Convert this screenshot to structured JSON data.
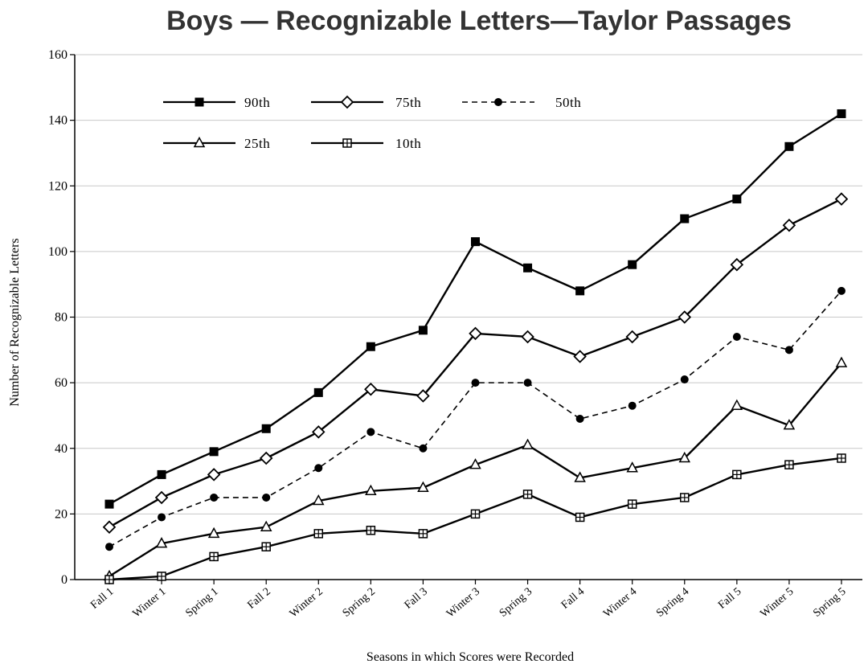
{
  "chart_data": {
    "type": "line",
    "title": "Boys — Recognizable Letters—Taylor Passages",
    "xlabel": "Seasons in which Scores were Recorded",
    "ylabel": "Number of Recognizable Letters",
    "ylim": [
      0,
      160
    ],
    "yticks": [
      0,
      20,
      40,
      60,
      80,
      100,
      120,
      140,
      160
    ],
    "grid": "horizontal",
    "legend_position": "top-left",
    "categories": [
      "Fall 1",
      "Winter 1",
      "Spring 1",
      "Fall 2",
      "Winter 2",
      "Spring 2",
      "Fall 3",
      "Winter 3",
      "Spring 3",
      "Fall 4",
      "Winter 4",
      "Spring 4",
      "Fall 5",
      "Winter 5",
      "Spring 5"
    ],
    "series": [
      {
        "name": "90th",
        "marker": "filled-square",
        "line": "solid",
        "values": [
          23,
          32,
          39,
          46,
          57,
          71,
          76,
          103,
          95,
          88,
          96,
          110,
          116,
          132,
          142
        ]
      },
      {
        "name": "75th",
        "marker": "open-diamond",
        "line": "solid",
        "values": [
          16,
          25,
          32,
          37,
          45,
          58,
          56,
          75,
          74,
          68,
          74,
          80,
          96,
          108,
          116
        ]
      },
      {
        "name": "50th",
        "marker": "filled-circle",
        "line": "dashed",
        "values": [
          10,
          19,
          25,
          25,
          34,
          45,
          40,
          60,
          60,
          49,
          53,
          61,
          74,
          70,
          88
        ]
      },
      {
        "name": "25th",
        "marker": "open-triangle",
        "line": "solid",
        "values": [
          1,
          11,
          14,
          16,
          24,
          27,
          28,
          35,
          41,
          31,
          34,
          37,
          53,
          47,
          66
        ]
      },
      {
        "name": "10th",
        "marker": "crossed-square",
        "line": "solid",
        "values": [
          0,
          1,
          7,
          10,
          14,
          15,
          14,
          20,
          26,
          19,
          23,
          25,
          32,
          35,
          37
        ]
      }
    ]
  }
}
